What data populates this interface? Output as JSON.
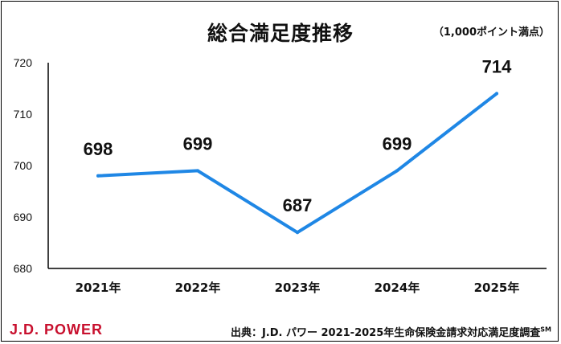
{
  "chart_data": {
    "type": "line",
    "title": "総合満足度推移",
    "unit_note": "（1,000ポイント満点）",
    "categories": [
      "2021年",
      "2022年",
      "2023年",
      "2024年",
      "2025年"
    ],
    "series": [
      {
        "values": [
          698,
          699,
          687,
          699,
          714
        ],
        "color": "#1f87e5"
      }
    ],
    "ylim": [
      680,
      720
    ],
    "yticks": [
      680,
      690,
      700,
      710,
      720
    ],
    "grid": false,
    "legend": "none"
  },
  "footer": {
    "logo": "J.D. POWER",
    "source": "出典：J.D. パワー 2021-2025年生命保険金請求対応満足度調査",
    "source_mark": "SM"
  }
}
